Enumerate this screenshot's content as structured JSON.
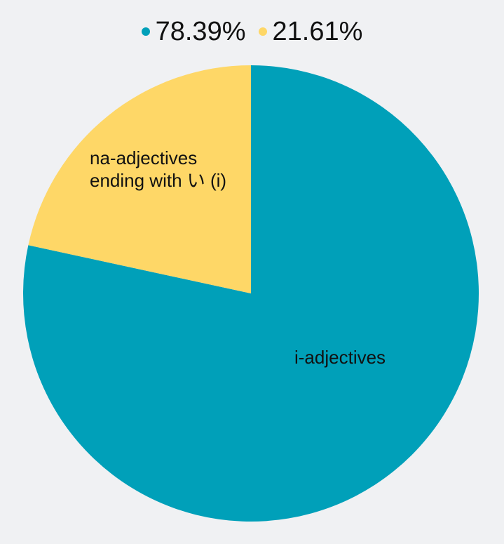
{
  "colors": {
    "background": "#f0f1f3"
  },
  "chart_data": {
    "type": "pie",
    "legend_position": "top",
    "slices": [
      {
        "label": "i-adjectives",
        "value": 78.39,
        "value_label": "78.39%",
        "color": "#00a0b9"
      },
      {
        "label": "na-adjectives\nending with い (i)",
        "value": 21.61,
        "value_label": "21.61%",
        "color": "#fed767"
      }
    ]
  }
}
